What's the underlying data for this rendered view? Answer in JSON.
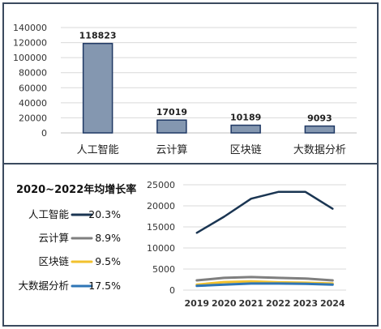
{
  "colors": {
    "bar_fill": "#8497b0",
    "bar_stroke": "#1f3864",
    "frame": "#3b4a5e",
    "gridline": "#d9d9d9",
    "series": [
      "#1a3552",
      "#7f7f7f",
      "#f2c12e",
      "#2e75b6"
    ]
  },
  "chart_data": [
    {
      "type": "bar",
      "categories": [
        "人工智能",
        "云计算",
        "区块链",
        "大数据分析"
      ],
      "values": [
        118823,
        17019,
        10189,
        9093
      ],
      "data_labels": [
        "118823",
        "17019",
        "10189",
        "9093"
      ],
      "yticks": [
        "0",
        "20000",
        "40000",
        "60000",
        "80000",
        "100000",
        "120000",
        "140000"
      ],
      "ylim": [
        0,
        140000
      ],
      "grid": true
    },
    {
      "type": "line",
      "title": "2020~2022年均增长率",
      "x": [
        "2019",
        "2020",
        "2021",
        "2022",
        "2023",
        "2024"
      ],
      "yticks": [
        "0",
        "5000",
        "10000",
        "15000",
        "20000",
        "25000"
      ],
      "ylim": [
        0,
        25000
      ],
      "grid": true,
      "legend_position": "left",
      "series": [
        {
          "name": "人工智能",
          "rate": "20.3%",
          "values": [
            13600,
            17400,
            21700,
            23300,
            23300,
            19300
          ]
        },
        {
          "name": "云计算",
          "rate": "8.9%",
          "values": [
            2300,
            2900,
            3100,
            2900,
            2750,
            2300
          ]
        },
        {
          "name": "区块链",
          "rate": "9.5%",
          "values": [
            1300,
            1900,
            2050,
            1850,
            1750,
            1550
          ]
        },
        {
          "name": "大数据分析",
          "rate": "17.5%",
          "values": [
            1000,
            1300,
            1550,
            1550,
            1500,
            1300
          ]
        }
      ]
    }
  ]
}
